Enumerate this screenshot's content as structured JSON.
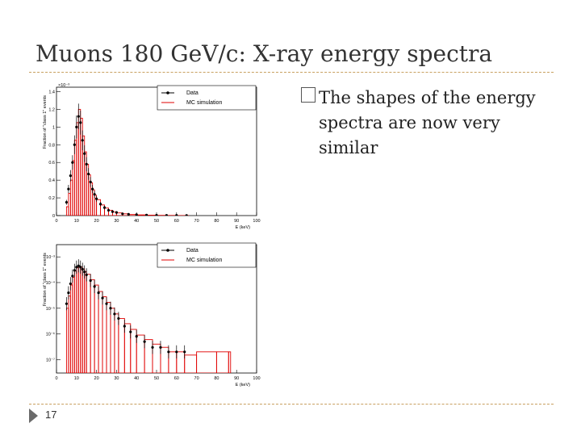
{
  "slide": {
    "title": "Muons 180 GeV/c: X-ray energy spectra",
    "bullet_marker": "checkbox-bullet-icon",
    "bullet_text": "The shapes of the energy spectra are now very similar",
    "page_number": "17",
    "colors": {
      "title": "#333333",
      "rule": "#c8a060",
      "data": "#000000",
      "mc": "#e00000"
    }
  },
  "chart_data": [
    {
      "type": "line",
      "xlabel": "E (keV)",
      "ylabel": "Fraction of \"class 1\" events",
      "multiplier": "×10⁻³",
      "xlim": [
        0,
        100
      ],
      "ylim": [
        0,
        1.45
      ],
      "x_ticks": [
        "0",
        "10",
        "20",
        "30",
        "40",
        "50",
        "60",
        "70",
        "80",
        "90",
        "100"
      ],
      "y_ticks": [
        "0",
        "0.2",
        "0.4",
        "0.6",
        "0.8",
        "1",
        "1.2",
        "1.4"
      ],
      "legend": [
        "Data",
        "MC simulation"
      ],
      "legend_position": "top-right",
      "series": [
        {
          "name": "Data",
          "style": "points-with-errors",
          "x": [
            5,
            6,
            7,
            8,
            9,
            10,
            11,
            12,
            13,
            14,
            15,
            16,
            17,
            18,
            19,
            20,
            22,
            24,
            26,
            28,
            30,
            33,
            36,
            40,
            45,
            50,
            55,
            60,
            65
          ],
          "y": [
            0.15,
            0.3,
            0.45,
            0.6,
            0.8,
            1.0,
            1.12,
            1.05,
            0.85,
            0.7,
            0.58,
            0.47,
            0.38,
            0.3,
            0.24,
            0.19,
            0.13,
            0.09,
            0.06,
            0.045,
            0.035,
            0.02,
            0.015,
            0.01,
            0.006,
            0.004,
            0.003,
            0.002,
            0.001
          ]
        },
        {
          "name": "MC simulation",
          "style": "histogram",
          "x": [
            5,
            6,
            7,
            8,
            9,
            10,
            11,
            12,
            13,
            14,
            15,
            16,
            17,
            18,
            19,
            20,
            22,
            24,
            26,
            28,
            30,
            33,
            36,
            40,
            45,
            50,
            55,
            60,
            65
          ],
          "y": [
            0.1,
            0.25,
            0.4,
            0.62,
            0.85,
            1.05,
            1.2,
            1.1,
            0.9,
            0.72,
            0.58,
            0.46,
            0.37,
            0.29,
            0.23,
            0.18,
            0.12,
            0.085,
            0.06,
            0.04,
            0.03,
            0.02,
            0.012,
            0.008,
            0.005,
            0.003,
            0.002,
            0.001,
            0.001
          ]
        }
      ]
    },
    {
      "type": "line",
      "yscale": "log",
      "xlabel": "E (keV)",
      "ylabel": "Fraction of \"class 1\" events",
      "xlim": [
        0,
        100
      ],
      "ylim": [
        3e-08,
        0.003
      ],
      "x_ticks": [
        "0",
        "10",
        "20",
        "30",
        "40",
        "50",
        "60",
        "70",
        "80",
        "90",
        "100"
      ],
      "y_ticks": [
        "10⁻⁷",
        "10⁻⁶",
        "10⁻⁵",
        "10⁻⁴",
        "10⁻³"
      ],
      "legend": [
        "Data",
        "MC simulation"
      ],
      "legend_position": "top-right",
      "series": [
        {
          "name": "Data",
          "style": "points-with-errors",
          "x": [
            5,
            6,
            7,
            8,
            9,
            10,
            11,
            12,
            13,
            14,
            15,
            17,
            19,
            21,
            23,
            25,
            27,
            29,
            31,
            34,
            37,
            40,
            44,
            48,
            52,
            56,
            60,
            64
          ],
          "y": [
            1.5e-05,
            4e-05,
            9e-05,
            0.00018,
            0.0003,
            0.0004,
            0.00045,
            0.0004,
            0.00033,
            0.00026,
            0.0002,
            0.00012,
            7e-05,
            4e-05,
            2.5e-05,
            1.5e-05,
            1e-05,
            6e-06,
            4e-06,
            2e-06,
            1.2e-06,
            8e-07,
            5e-07,
            3e-07,
            3e-07,
            2e-07,
            2e-07,
            2e-07
          ]
        },
        {
          "name": "MC simulation",
          "style": "histogram",
          "x": [
            5,
            6,
            7,
            8,
            9,
            10,
            11,
            12,
            13,
            14,
            15,
            17,
            19,
            21,
            23,
            25,
            27,
            29,
            31,
            34,
            37,
            40,
            44,
            48,
            52,
            56,
            60,
            64,
            70,
            80,
            86
          ],
          "y": [
            1e-05,
            3e-05,
            8e-05,
            0.00016,
            0.00028,
            0.00038,
            0.00044,
            0.0004,
            0.00034,
            0.00027,
            0.00021,
            0.00013,
            8e-05,
            4.5e-05,
            2.8e-05,
            1.7e-05,
            1e-05,
            6e-06,
            4e-06,
            2.5e-06,
            1.5e-06,
            9e-07,
            6e-07,
            4e-07,
            3e-07,
            2e-07,
            2e-07,
            1.5e-07,
            2e-07,
            2e-07,
            2e-07
          ]
        }
      ]
    }
  ]
}
